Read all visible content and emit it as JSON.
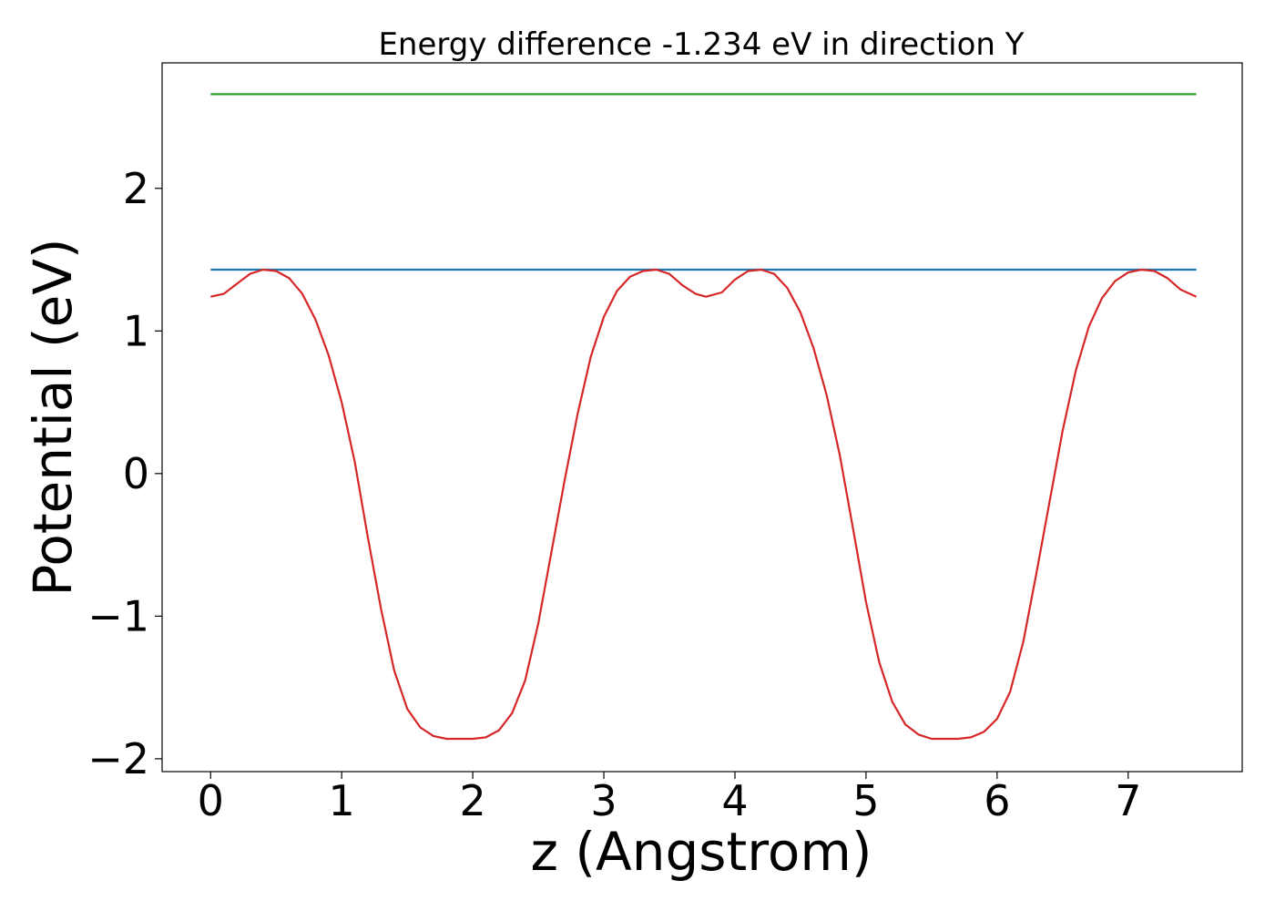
{
  "chart_data": {
    "type": "line",
    "title": "Energy difference -1.234 eV in direction Y",
    "xlabel": "z (Angstrom)",
    "ylabel": "Potential (eV)",
    "xlim": [
      -0.37,
      7.87
    ],
    "ylim": [
      -2.09,
      2.88
    ],
    "xticks": [
      0,
      1,
      2,
      3,
      4,
      5,
      6,
      7
    ],
    "yticks": [
      -2,
      -1,
      0,
      1,
      2
    ],
    "ytick_labels": [
      "−2",
      "−1",
      "0",
      "1",
      "2"
    ],
    "grid": false,
    "series": [
      {
        "color": "#d62728",
        "points": [
          [
            0.0,
            1.24
          ],
          [
            0.1,
            1.26
          ],
          [
            0.2,
            1.33
          ],
          [
            0.3,
            1.4
          ],
          [
            0.4,
            1.43
          ],
          [
            0.5,
            1.42
          ],
          [
            0.6,
            1.37
          ],
          [
            0.7,
            1.26
          ],
          [
            0.8,
            1.08
          ],
          [
            0.9,
            0.83
          ],
          [
            1.0,
            0.5
          ],
          [
            1.1,
            0.08
          ],
          [
            1.2,
            -0.45
          ],
          [
            1.3,
            -0.95
          ],
          [
            1.4,
            -1.38
          ],
          [
            1.5,
            -1.65
          ],
          [
            1.6,
            -1.78
          ],
          [
            1.7,
            -1.84
          ],
          [
            1.8,
            -1.86
          ],
          [
            1.9,
            -1.86
          ],
          [
            2.0,
            -1.86
          ],
          [
            2.1,
            -1.85
          ],
          [
            2.2,
            -1.8
          ],
          [
            2.3,
            -1.68
          ],
          [
            2.4,
            -1.45
          ],
          [
            2.5,
            -1.05
          ],
          [
            2.6,
            -0.55
          ],
          [
            2.7,
            -0.05
          ],
          [
            2.8,
            0.42
          ],
          [
            2.9,
            0.82
          ],
          [
            3.0,
            1.1
          ],
          [
            3.1,
            1.28
          ],
          [
            3.2,
            1.38
          ],
          [
            3.3,
            1.42
          ],
          [
            3.4,
            1.43
          ],
          [
            3.5,
            1.4
          ],
          [
            3.6,
            1.32
          ],
          [
            3.7,
            1.26
          ],
          [
            3.78,
            1.24
          ],
          [
            3.9,
            1.27
          ],
          [
            4.0,
            1.36
          ],
          [
            4.1,
            1.42
          ],
          [
            4.2,
            1.43
          ],
          [
            4.3,
            1.4
          ],
          [
            4.4,
            1.3
          ],
          [
            4.5,
            1.13
          ],
          [
            4.6,
            0.88
          ],
          [
            4.7,
            0.55
          ],
          [
            4.8,
            0.13
          ],
          [
            4.9,
            -0.38
          ],
          [
            5.0,
            -0.9
          ],
          [
            5.1,
            -1.32
          ],
          [
            5.2,
            -1.6
          ],
          [
            5.3,
            -1.76
          ],
          [
            5.4,
            -1.83
          ],
          [
            5.5,
            -1.86
          ],
          [
            5.6,
            -1.86
          ],
          [
            5.7,
            -1.86
          ],
          [
            5.8,
            -1.85
          ],
          [
            5.9,
            -1.81
          ],
          [
            6.0,
            -1.72
          ],
          [
            6.1,
            -1.53
          ],
          [
            6.2,
            -1.18
          ],
          [
            6.3,
            -0.7
          ],
          [
            6.4,
            -0.2
          ],
          [
            6.5,
            0.3
          ],
          [
            6.6,
            0.72
          ],
          [
            6.7,
            1.03
          ],
          [
            6.8,
            1.23
          ],
          [
            6.9,
            1.35
          ],
          [
            7.0,
            1.41
          ],
          [
            7.1,
            1.43
          ],
          [
            7.2,
            1.42
          ],
          [
            7.3,
            1.37
          ],
          [
            7.4,
            1.29
          ],
          [
            7.52,
            1.24
          ]
        ]
      },
      {
        "color": "#1f77b4",
        "points": [
          [
            0.0,
            1.43
          ],
          [
            7.52,
            1.43
          ]
        ]
      },
      {
        "color": "#2ca02c",
        "points": [
          [
            0.0,
            2.66
          ],
          [
            7.52,
            2.66
          ]
        ]
      }
    ]
  }
}
